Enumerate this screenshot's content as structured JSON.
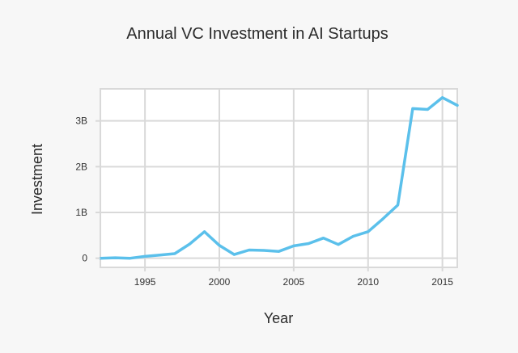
{
  "colors": {
    "background": "#f7f7f7",
    "plot_background": "#ffffff",
    "grid": "#d9d9d9",
    "line": "#5bc0eb",
    "text": "#2b2b2b"
  },
  "chart_data": {
    "type": "line",
    "title": "Annual VC Investment in AI Startups",
    "xlabel": "Year",
    "ylabel": "Investment",
    "xlim": [
      1992,
      2016
    ],
    "ylim": [
      -0.2,
      3.7
    ],
    "grid": true,
    "x_ticks": [
      {
        "value": 1995,
        "label": "1995"
      },
      {
        "value": 2000,
        "label": "2000"
      },
      {
        "value": 2005,
        "label": "2005"
      },
      {
        "value": 2010,
        "label": "2010"
      },
      {
        "value": 2015,
        "label": "2015"
      }
    ],
    "y_ticks": [
      {
        "value": 0,
        "label": "0"
      },
      {
        "value": 1,
        "label": "1B"
      },
      {
        "value": 2,
        "label": "2B"
      },
      {
        "value": 3,
        "label": "3B"
      }
    ],
    "series": [
      {
        "x": [
          1992,
          1993,
          1994,
          1995,
          1996,
          1997,
          1998,
          1999,
          2000,
          2001,
          2002,
          2003,
          2004,
          2005,
          2006,
          2007,
          2008,
          2009,
          2010,
          2011,
          2012,
          2013,
          2014,
          2015,
          2016
        ],
        "y": [
          0.0,
          0.01,
          0.0,
          0.04,
          0.07,
          0.1,
          0.31,
          0.58,
          0.28,
          0.08,
          0.18,
          0.17,
          0.15,
          0.27,
          0.32,
          0.44,
          0.3,
          0.48,
          0.58,
          0.86,
          1.16,
          3.27,
          3.25,
          3.51,
          3.34
        ]
      }
    ]
  }
}
